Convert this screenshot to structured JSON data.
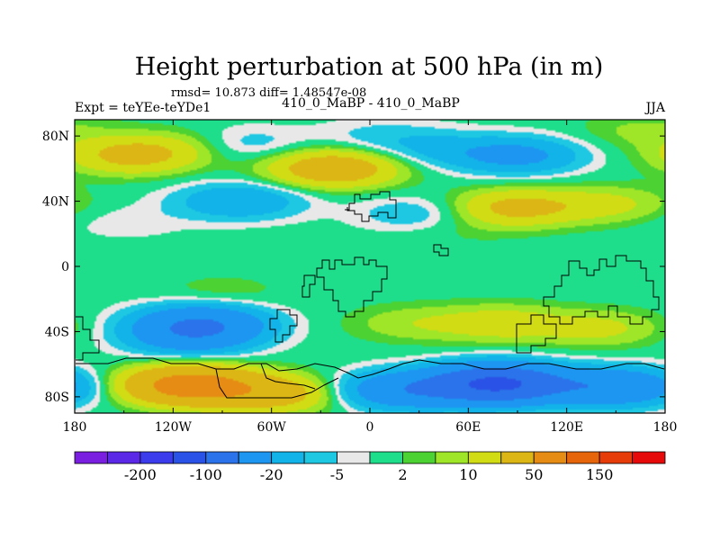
{
  "chart_data": {
    "type": "heatmap",
    "title": "Height perturbation at 500 hPa (in m)",
    "stats": "rmsd= 10.873 diff= 1.48547e-08",
    "experiment": "Expt = teYEe-teYDe1",
    "case": "410_0_MaBP - 410_0_MaBP",
    "season": "JJA",
    "xlabel": "",
    "ylabel": "",
    "xlim": [
      -180,
      180
    ],
    "ylim": [
      -90,
      90
    ],
    "x_ticks": [
      {
        "value": -180,
        "label": "180"
      },
      {
        "value": -120,
        "label": "120W"
      },
      {
        "value": -60,
        "label": "60W"
      },
      {
        "value": 0,
        "label": "0"
      },
      {
        "value": 60,
        "label": "60E"
      },
      {
        "value": 120,
        "label": "120E"
      },
      {
        "value": 180,
        "label": "180"
      }
    ],
    "y_ticks": [
      {
        "value": 80,
        "label": "80N"
      },
      {
        "value": 40,
        "label": "40N"
      },
      {
        "value": 0,
        "label": "0"
      },
      {
        "value": -40,
        "label": "40S"
      },
      {
        "value": -80,
        "label": "80S"
      }
    ],
    "contour_levels": [
      -250,
      -200,
      -150,
      -100,
      -50,
      -20,
      -10,
      -5,
      -2,
      2,
      5,
      10,
      20,
      50,
      100,
      150,
      200
    ],
    "colorbar": {
      "colors": [
        "#7a1fe0",
        "#5a28e6",
        "#3c3cec",
        "#2a52e6",
        "#2b73ea",
        "#1d96f2",
        "#12b3e8",
        "#1ec8e2",
        "#e8e8e8",
        "#1ede8c",
        "#4cd232",
        "#a0e628",
        "#d2dc14",
        "#dcb614",
        "#e68c14",
        "#e6640a",
        "#e63c0a",
        "#e60a0a"
      ],
      "labels": [
        {
          "after_index": 1,
          "label": "-200"
        },
        {
          "after_index": 3,
          "label": "-100"
        },
        {
          "after_index": 5,
          "label": "-20"
        },
        {
          "after_index": 7,
          "label": "-5"
        },
        {
          "after_index": 9,
          "label": "2"
        },
        {
          "after_index": 11,
          "label": "10"
        },
        {
          "after_index": 13,
          "label": "50"
        },
        {
          "after_index": 15,
          "label": "150"
        }
      ]
    },
    "features": [
      {
        "lon": -145,
        "lat": 68,
        "value": 25
      },
      {
        "lon": -110,
        "lat": 74,
        "value": 8
      },
      {
        "lon": -80,
        "lat": 75,
        "value": -10
      },
      {
        "lon": -22,
        "lat": 60,
        "value": 35
      },
      {
        "lon": 5,
        "lat": 80,
        "value": -6
      },
      {
        "lon": 40,
        "lat": 72,
        "value": -10
      },
      {
        "lon": 90,
        "lat": 68,
        "value": -25
      },
      {
        "lon": 165,
        "lat": 83,
        "value": 6
      },
      {
        "lon": -80,
        "lat": 40,
        "value": -20
      },
      {
        "lon": 30,
        "lat": 32,
        "value": -10
      },
      {
        "lon": 88,
        "lat": 36,
        "value": 25
      },
      {
        "lon": 145,
        "lat": 38,
        "value": 12
      },
      {
        "lon": -150,
        "lat": 27,
        "value": -4
      },
      {
        "lon": 50,
        "lat": 23,
        "value": 3
      },
      {
        "lon": -103,
        "lat": -35,
        "value": -45
      },
      {
        "lon": -110,
        "lat": -44,
        "value": -25
      },
      {
        "lon": 25,
        "lat": -35,
        "value": 8
      },
      {
        "lon": 80,
        "lat": -35,
        "value": 15
      },
      {
        "lon": 140,
        "lat": -38,
        "value": 12
      },
      {
        "lon": -90,
        "lat": -16,
        "value": 4
      },
      {
        "lon": -110,
        "lat": -73,
        "value": 70
      },
      {
        "lon": -60,
        "lat": -78,
        "value": 30
      },
      {
        "lon": 78,
        "lat": -72,
        "value": -110
      },
      {
        "lon": 20,
        "lat": -76,
        "value": -40
      },
      {
        "lon": 150,
        "lat": -74,
        "value": -45
      }
    ]
  }
}
